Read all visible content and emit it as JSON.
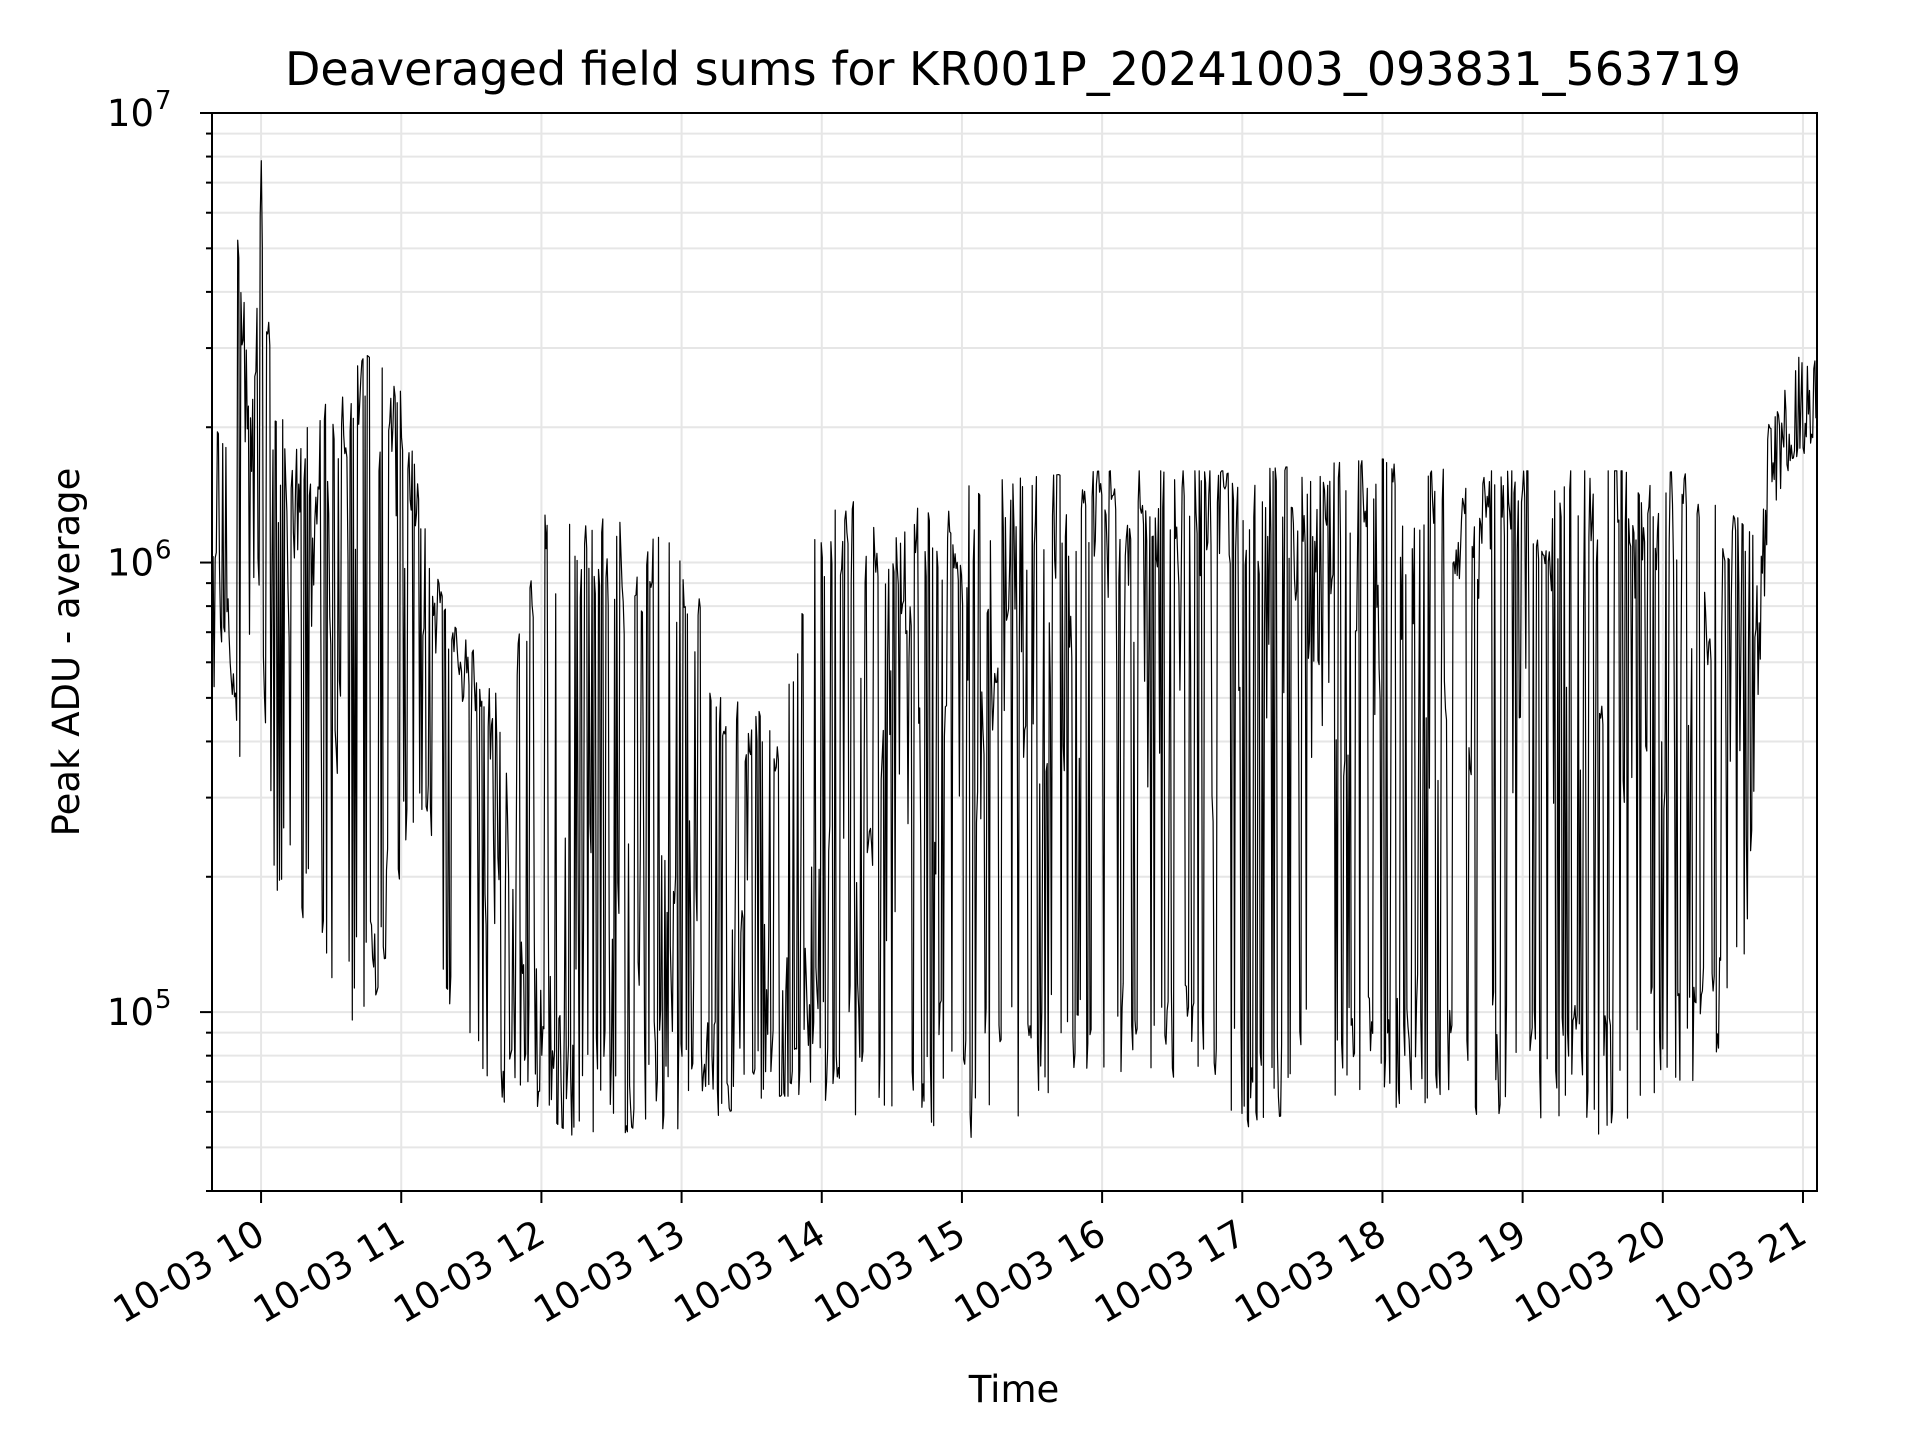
{
  "chart_data": {
    "type": "line",
    "title": "Deaveraged field sums for KR001P_20241003_093831_563719",
    "xlabel": "Time",
    "ylabel": "Peak ADU - average",
    "xscale": "time",
    "yscale": "log",
    "grid": true,
    "legend": "none",
    "line_color": "#000000",
    "grid_color": "#e6e6e6",
    "xlim": [
      "2024-10-03 09:39",
      "2024-10-03 21:06"
    ],
    "ylim": [
      40000,
      10000000
    ],
    "xticks": [
      "2024-10-03 10:00",
      "2024-10-03 11:00",
      "2024-10-03 12:00",
      "2024-10-03 13:00",
      "2024-10-03 14:00",
      "2024-10-03 15:00",
      "2024-10-03 16:00",
      "2024-10-03 17:00",
      "2024-10-03 18:00",
      "2024-10-03 19:00",
      "2024-10-03 20:00",
      "2024-10-03 21:00"
    ],
    "xtick_labels": [
      "10-03 10",
      "10-03 11",
      "10-03 12",
      "10-03 13",
      "10-03 14",
      "10-03 15",
      "10-03 16",
      "10-03 17",
      "10-03 18",
      "10-03 19",
      "10-03 20",
      "10-03 21"
    ],
    "yticks": [
      100000,
      1000000,
      10000000
    ],
    "ytick_labels": [
      {
        "base": "10",
        "exp": "5"
      },
      {
        "base": "10",
        "exp": "6"
      },
      {
        "base": "10",
        "exp": "7"
      }
    ],
    "series": [
      {
        "values_note_free": true,
        "x": [
          "2024-10-03 09:39",
          "2024-10-03 09:45",
          "2024-10-03 09:50",
          "2024-10-03 09:56",
          "2024-10-03 10:00",
          "2024-10-03 10:05",
          "2024-10-03 10:15",
          "2024-10-03 10:30",
          "2024-10-03 10:45",
          "2024-10-03 11:00",
          "2024-10-03 11:10",
          "2024-10-03 11:20",
          "2024-10-03 11:30",
          "2024-10-03 11:45",
          "2024-10-03 12:00",
          "2024-10-03 12:20",
          "2024-10-03 12:40",
          "2024-10-03 13:00",
          "2024-10-03 13:20",
          "2024-10-03 13:40",
          "2024-10-03 14:00",
          "2024-10-03 14:20",
          "2024-10-03 14:40",
          "2024-10-03 15:00",
          "2024-10-03 15:30",
          "2024-10-03 16:00",
          "2024-10-03 16:30",
          "2024-10-03 17:00",
          "2024-10-03 17:30",
          "2024-10-03 18:00",
          "2024-10-03 18:30",
          "2024-10-03 19:00",
          "2024-10-03 19:30",
          "2024-10-03 20:00",
          "2024-10-03 20:20",
          "2024-10-03 20:35",
          "2024-10-03 20:45",
          "2024-10-03 20:55",
          "2024-10-03 21:06"
        ],
        "y": [
          600000,
          1800000,
          6500000,
          1500000,
          8000000,
          1200000,
          800000,
          900000,
          1200000,
          1700000,
          1000000,
          700000,
          400000,
          150000,
          100000,
          110000,
          120000,
          110000,
          130000,
          100000,
          120000,
          300000,
          500000,
          700000,
          800000,
          800000,
          800000,
          800000,
          900000,
          900000,
          800000,
          800000,
          700000,
          700000,
          600000,
          400000,
          1800000,
          1800000,
          2300000
        ],
        "envelope_high": [
          2200000,
          1800000,
          6500000,
          2000000,
          8000000,
          2200000,
          2000000,
          2300000,
          2900000,
          2500000,
          1200000,
          750000,
          650000,
          470000,
          1350000,
          1250000,
          1250000,
          1150000,
          500000,
          450000,
          1400000,
          1350000,
          1400000,
          1500000,
          1550000,
          1600000,
          1600000,
          1600000,
          1650000,
          1700000,
          1600000,
          1600000,
          1600000,
          1600000,
          1550000,
          1200000,
          2000000,
          2900000,
          2800000
        ],
        "envelope_low": [
          450000,
          700000,
          320000,
          800000,
          820000,
          150000,
          190000,
          85000,
          90000,
          180000,
          280000,
          100000,
          75000,
          53000,
          60000,
          50000,
          55000,
          55000,
          60000,
          65000,
          65000,
          50000,
          55000,
          50000,
          60000,
          70000,
          72000,
          55000,
          62000,
          60000,
          58000,
          57000,
          52000,
          65000,
          70000,
          120000,
          1100000,
          1700000,
          1800000
        ]
      }
    ]
  }
}
